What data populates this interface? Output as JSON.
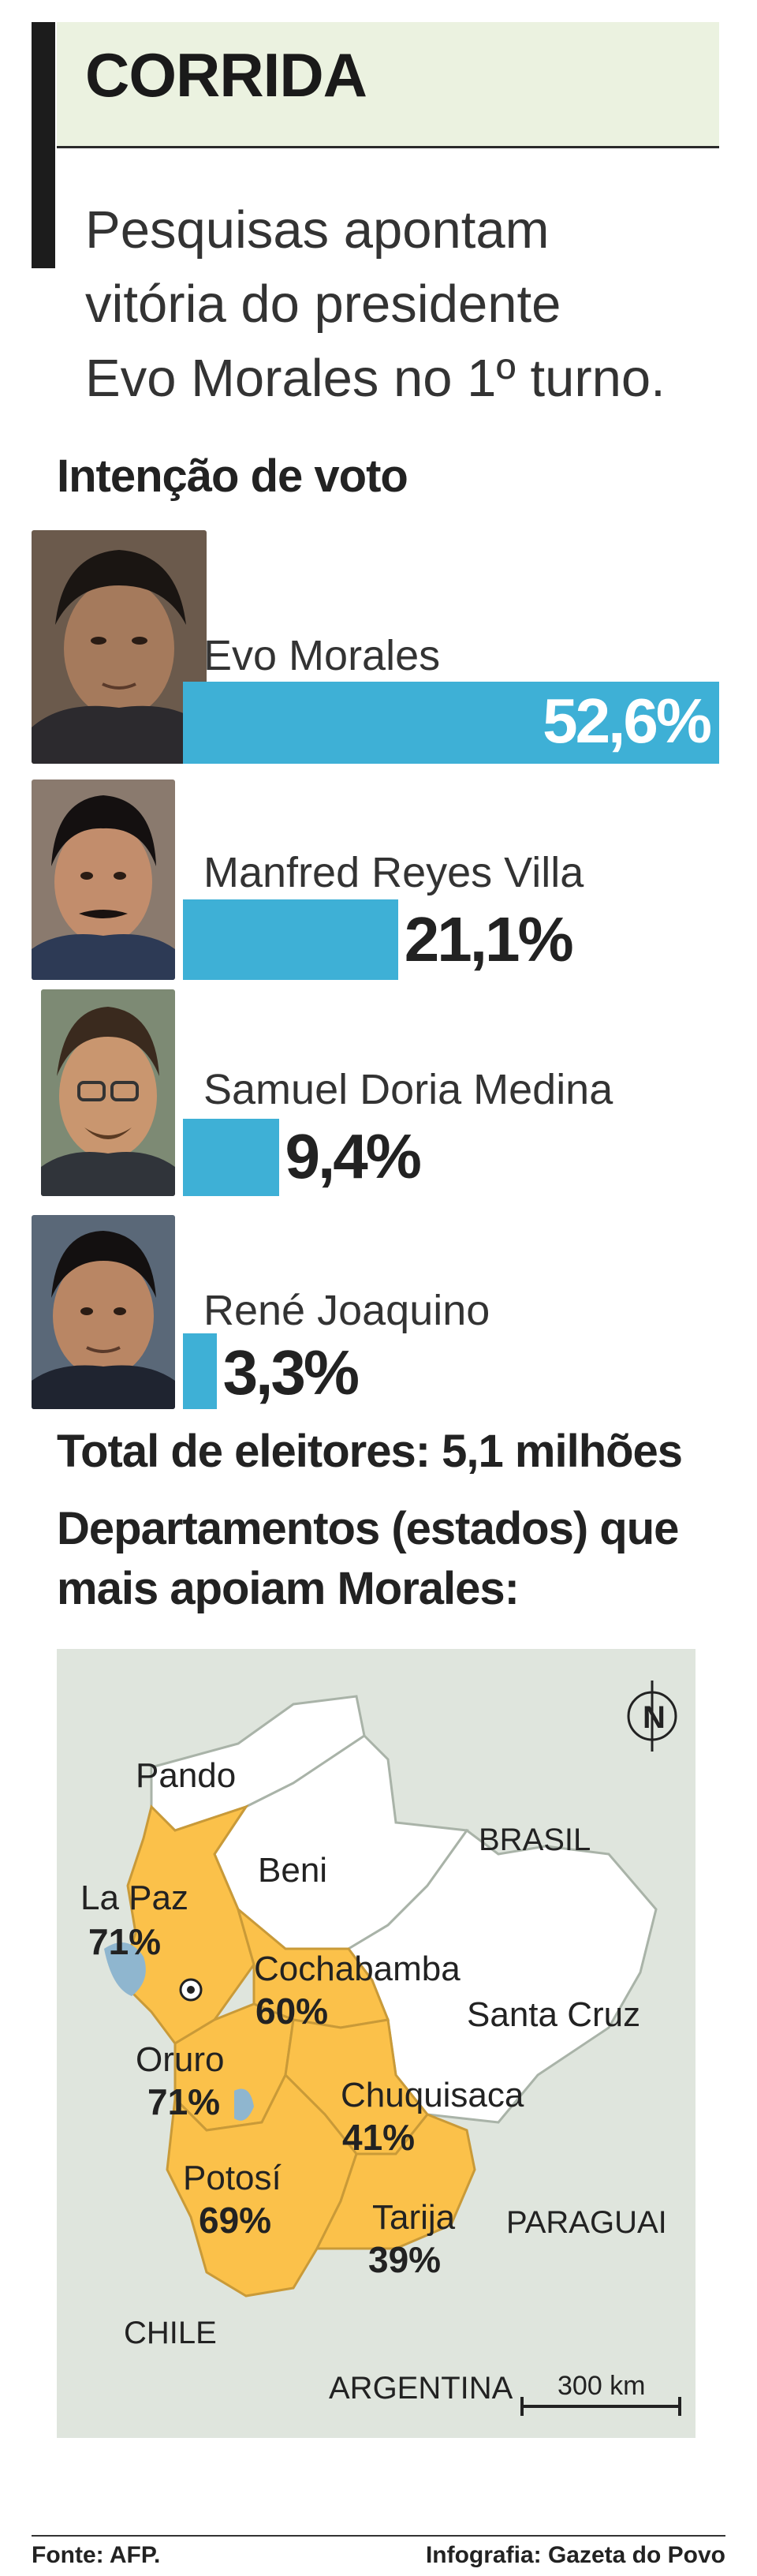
{
  "header": {
    "title": "CORRIDA",
    "subtitle_lines": [
      "Pesquisas apontam",
      "vitória do presidente",
      "Evo Morales no 1º turno."
    ]
  },
  "vote_section": {
    "title": "Intenção de voto"
  },
  "chart_data": [
    {
      "type": "bar",
      "title": "Intenção de voto",
      "categories": [
        "Evo Morales",
        "Manfred Reyes Villa",
        "Samuel Doria Medina",
        "René Joaquino"
      ],
      "values": [
        52.6,
        21.1,
        9.4,
        3.3
      ],
      "value_labels": [
        "52,6%",
        "21,1%",
        "9,4%",
        "3,3%"
      ],
      "unit": "%",
      "orientation": "horizontal",
      "xlim": [
        0,
        52.6
      ],
      "bar_color": "#3eb0d6",
      "grid": false,
      "legend": "none"
    },
    {
      "type": "map",
      "title": "Departamentos (estados) que mais apoiam Morales:",
      "regions": [
        {
          "name": "La Paz",
          "value": 71,
          "label": "71%",
          "highlighted": true
        },
        {
          "name": "Cochabamba",
          "value": 60,
          "label": "60%",
          "highlighted": true
        },
        {
          "name": "Oruro",
          "value": 71,
          "label": "71%",
          "highlighted": true
        },
        {
          "name": "Chuquisaca",
          "value": 41,
          "label": "41%",
          "highlighted": true
        },
        {
          "name": "Potosí",
          "value": 69,
          "label": "69%",
          "highlighted": true
        },
        {
          "name": "Tarija",
          "value": 39,
          "label": "39%",
          "highlighted": true
        },
        {
          "name": "Pando",
          "highlighted": false
        },
        {
          "name": "Beni",
          "highlighted": false
        },
        {
          "name": "Santa Cruz",
          "highlighted": false
        }
      ],
      "neighbors": [
        "BRASIL",
        "PARAGUAI",
        "CHILE",
        "ARGENTINA"
      ],
      "scale_label": "300 km",
      "compass": "N",
      "highlight_color": "#fbc14a",
      "background_color": "#dfe5dd"
    }
  ],
  "totals": {
    "text": "Total de eleitores: 5,1 milhões"
  },
  "map_section": {
    "title_lines": [
      "Departamentos (estados) que",
      "mais apoiam Morales:"
    ]
  },
  "footer": {
    "source": "Fonte: AFP.",
    "credit": "Infografia: Gazeta do Povo"
  }
}
